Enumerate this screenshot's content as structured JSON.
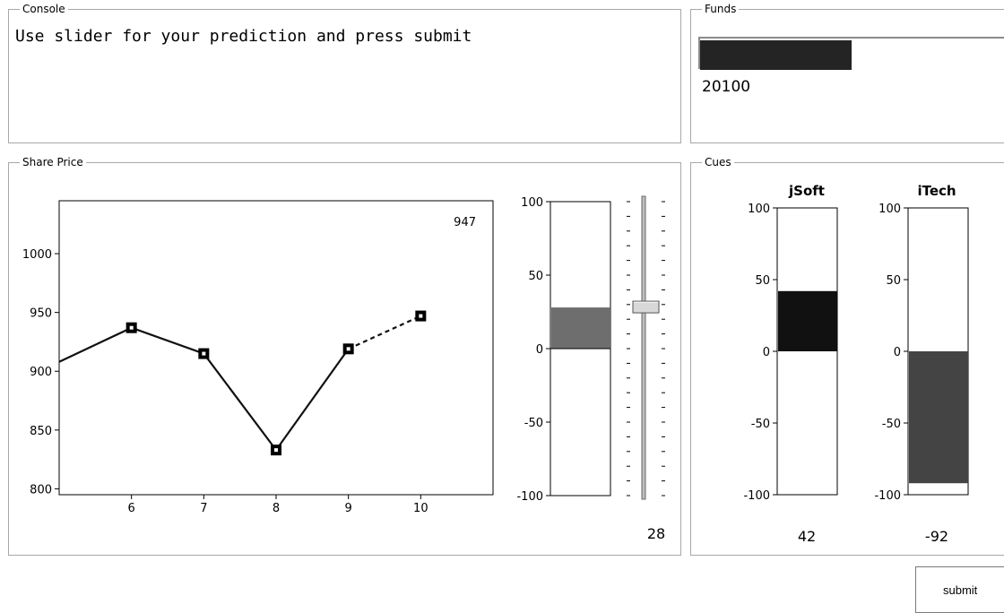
{
  "console": {
    "title": "Console",
    "message": "Use slider for your prediction and press submit"
  },
  "funds": {
    "title": "Funds",
    "value": "20100",
    "bar_fill_fraction": 0.47,
    "bar_color": "#242424"
  },
  "share_price": {
    "title": "Share Price",
    "current_label": "947"
  },
  "chart_data": {
    "type": "line",
    "x": [
      5,
      6,
      7,
      8,
      9,
      10
    ],
    "y": [
      908,
      937,
      915,
      833,
      919,
      947
    ],
    "xticks": [
      6,
      7,
      8,
      9,
      10
    ],
    "yticks": [
      800,
      850,
      900,
      950,
      1000
    ],
    "xlim": [
      5,
      11
    ],
    "ylim": [
      795,
      1045
    ],
    "markers_at_x": [
      6,
      7,
      8,
      9,
      10
    ],
    "dashed_from_x": 9,
    "annotation": "947",
    "line_color": "#111111"
  },
  "prediction": {
    "ticks": [
      "100",
      "50",
      "0",
      "-50",
      "-100"
    ],
    "min": -100,
    "max": 100,
    "value": 28,
    "value_label": "28",
    "bar_color": "#6e6e6e"
  },
  "cues": {
    "title": "Cues",
    "items": [
      {
        "name": "jSoft",
        "value": 42,
        "value_label": "42",
        "color": "#111111",
        "ticks": [
          "100",
          "50",
          "0",
          "-50",
          "-100"
        ]
      },
      {
        "name": "iTech",
        "value": -92,
        "value_label": "-92",
        "color": "#444444",
        "ticks": [
          "100",
          "50",
          "0",
          "-50",
          "-100"
        ]
      }
    ]
  },
  "submit": {
    "label": "submit"
  }
}
